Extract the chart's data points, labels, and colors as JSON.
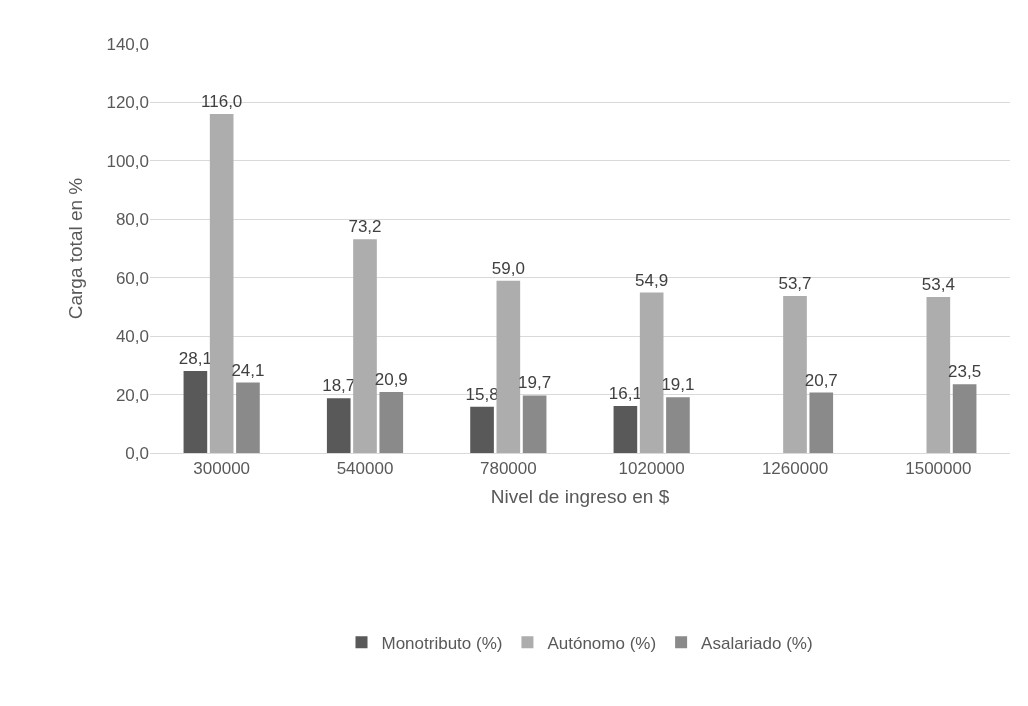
{
  "chart_data": {
    "type": "bar",
    "xlabel": "Nivel de ingreso en $",
    "ylabel": "Carga total en %",
    "categories": [
      "300000",
      "540000",
      "780000",
      "1020000",
      "1260000",
      "1500000"
    ],
    "series": [
      {
        "name": "Monotributo (%)",
        "color": "#595959",
        "values": [
          28.1,
          18.7,
          15.8,
          16.1,
          null,
          null
        ],
        "value_labels": [
          "28,1",
          "18,7",
          "15,8",
          "16,1",
          null,
          null
        ]
      },
      {
        "name": "Autónomo (%)",
        "color": "#adadad",
        "values": [
          116.0,
          73.2,
          59.0,
          54.9,
          53.7,
          53.4
        ],
        "value_labels": [
          "116,0",
          "73,2",
          "59,0",
          "54,9",
          "53,7",
          "53,4"
        ]
      },
      {
        "name": "Asalariado (%)",
        "color": "#8a8a8a",
        "values": [
          24.1,
          20.9,
          19.7,
          19.1,
          20.7,
          23.5
        ],
        "value_labels": [
          "24,1",
          "20,9",
          "19,7",
          "19,1",
          "20,7",
          "23,5"
        ]
      }
    ],
    "ylim": [
      0,
      140
    ],
    "yticks": [
      {
        "value": 0,
        "label": "0,0"
      },
      {
        "value": 20,
        "label": "20,0"
      },
      {
        "value": 40,
        "label": "40,0"
      },
      {
        "value": 60,
        "label": "60,0"
      },
      {
        "value": 80,
        "label": "80,0"
      },
      {
        "value": 100,
        "label": "100,0"
      },
      {
        "value": 120,
        "label": "120,0"
      },
      {
        "value": 140,
        "label": "140,0"
      }
    ],
    "grid": "y",
    "legend": "bottom"
  }
}
